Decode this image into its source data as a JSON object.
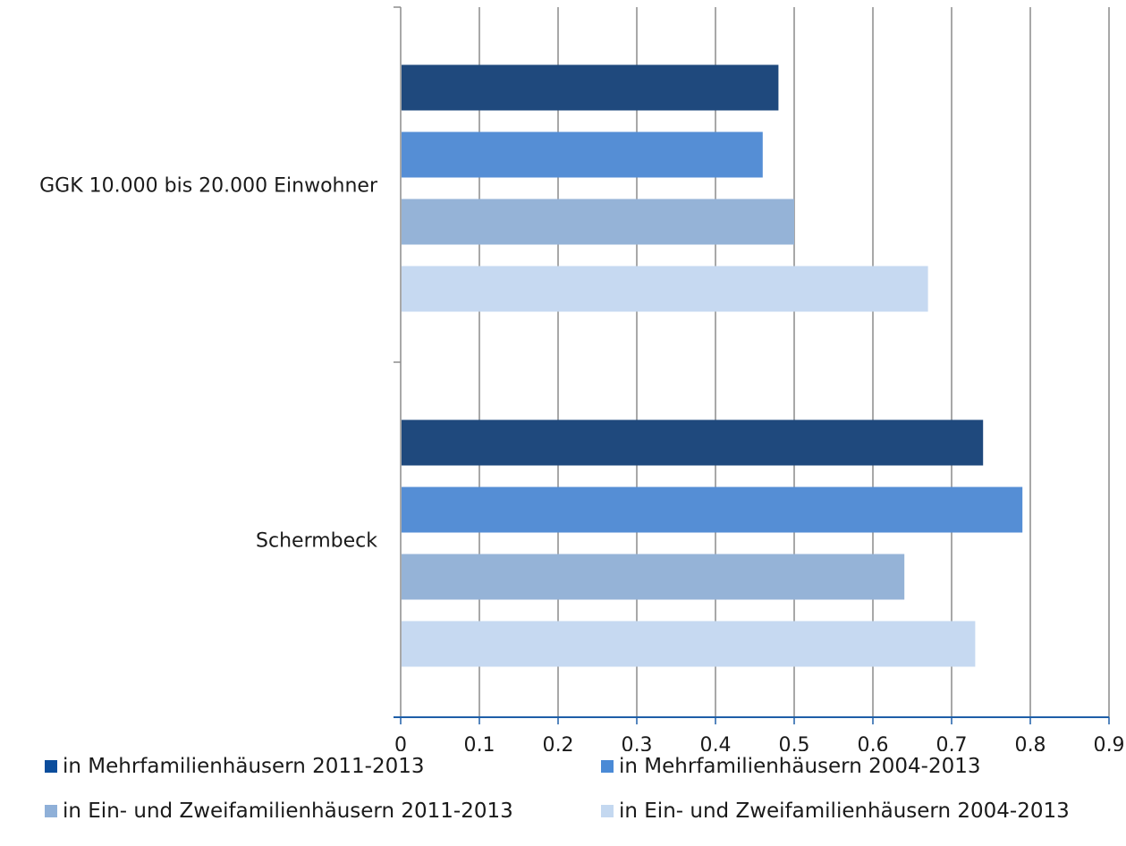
{
  "chart_data": {
    "type": "bar",
    "orientation": "horizontal",
    "categories": [
      "GGK 10.000 bis 20.000 Einwohner",
      "Schermbeck"
    ],
    "series": [
      {
        "name": "in Mehrfamilienhäusern 2011-2013",
        "color": "#1f497d",
        "values": [
          0.48,
          0.74
        ]
      },
      {
        "name": "in Mehrfamilienhäusern 2004-2013",
        "color": "#558ed5",
        "values": [
          0.46,
          0.79
        ]
      },
      {
        "name": "in Ein- und Zweifamilienhäusern 2011-2013",
        "color": "#95b3d7",
        "values": [
          0.5,
          0.64
        ]
      },
      {
        "name": "in Ein- und Zweifamilienhäusern 2004-2013",
        "color": "#c6d9f1",
        "values": [
          0.67,
          0.73
        ]
      }
    ],
    "xlim": [
      0,
      0.9
    ],
    "ticks": [
      "0",
      "0,1",
      "0,2",
      "0,3",
      "0,4",
      "0,5",
      "0,6",
      "0,7",
      "0,8",
      "0,9"
    ],
    "grid": true,
    "legend_position": "bottom",
    "legend_swatch_colors": [
      "#0b4d9c",
      "#4a8ad6",
      "#8fb0d8",
      "#c4d8f0"
    ],
    "colors": {
      "gridline": "#8c8c8c",
      "x_axis": "#1f5fa8",
      "y_axis": "#8c8c8c"
    }
  }
}
